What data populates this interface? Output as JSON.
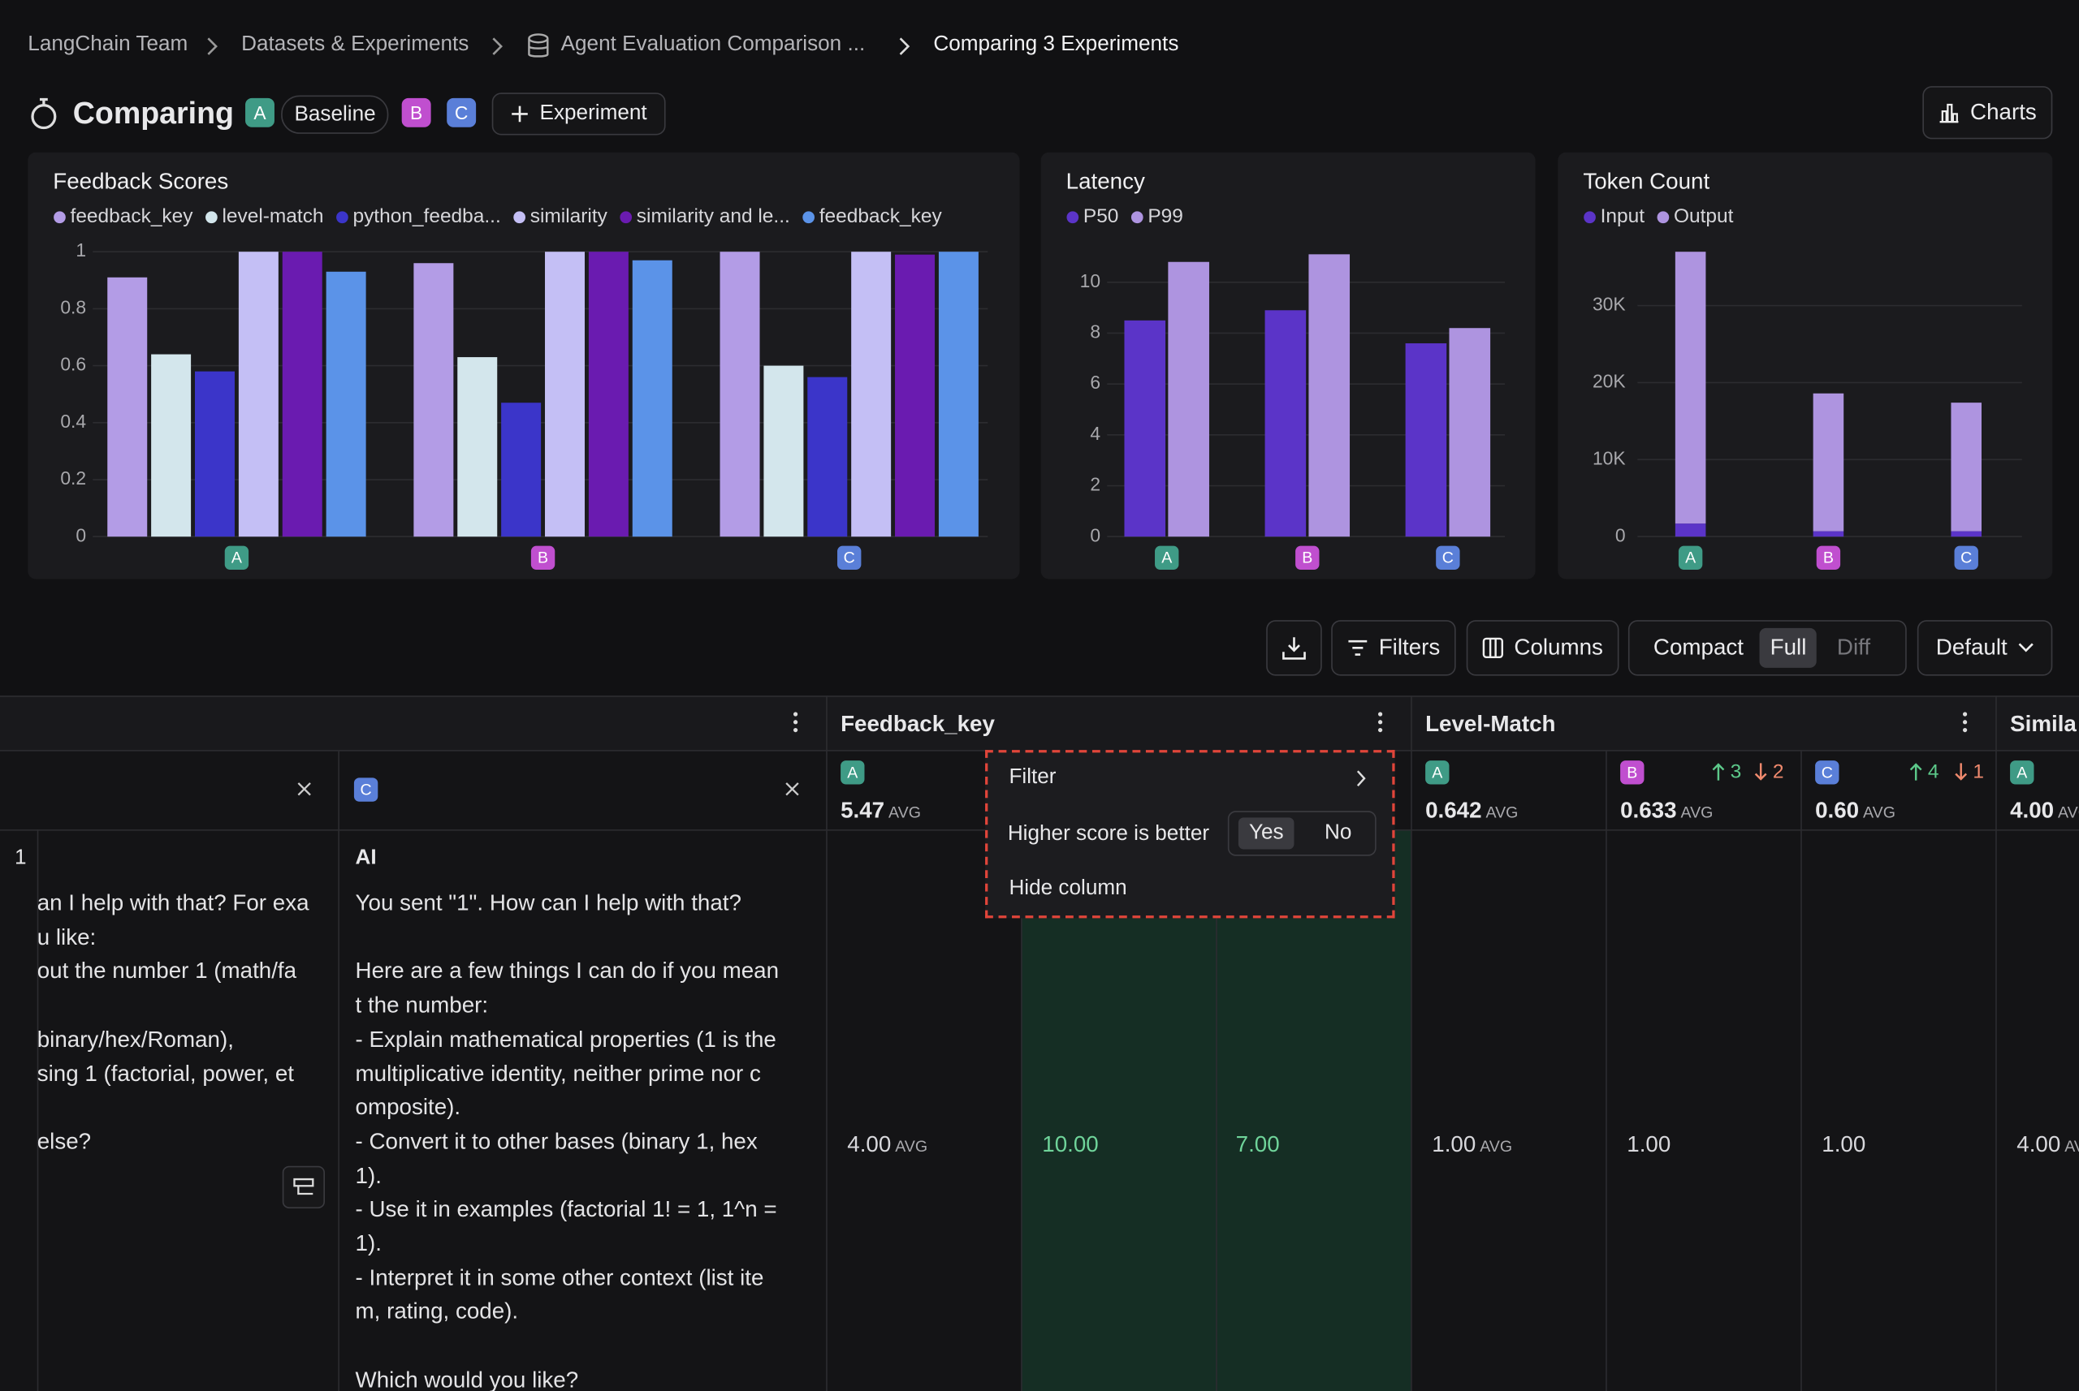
{
  "breadcrumbs": [
    "LangChain Team",
    "Datasets & Experiments",
    "Agent Evaluation Comparison ...",
    "Comparing 3 Experiments"
  ],
  "header": {
    "title": "Comparing",
    "baseline_badge": "A",
    "baseline_label": "Baseline",
    "other_badges": [
      "B",
      "C"
    ],
    "add_button": "Experiment",
    "charts_button": "Charts"
  },
  "badge_colors": {
    "A": "#3f9b86",
    "B": "#c04fcf",
    "C": "#5a7fd8"
  },
  "chart_data": [
    {
      "type": "bar",
      "title": "Feedback Scores",
      "categories": [
        "A",
        "B",
        "C"
      ],
      "ylim": [
        0,
        1
      ],
      "yticks": [
        0,
        0.2,
        0.4,
        0.6,
        0.8,
        1
      ],
      "grid": true,
      "series": [
        {
          "name": "feedback_key",
          "color": "#b39ce6",
          "values": [
            0.91,
            0.96,
            1.0
          ]
        },
        {
          "name": "level-match",
          "color": "#d3e6ec",
          "values": [
            0.64,
            0.63,
            0.6
          ]
        },
        {
          "name": "python_feedba...",
          "color": "#3b35c9",
          "values": [
            0.58,
            0.47,
            0.56
          ]
        },
        {
          "name": "similarity",
          "color": "#c4bff5",
          "values": [
            1.0,
            1.0,
            1.0
          ]
        },
        {
          "name": "similarity and le...",
          "color": "#6a1bb0",
          "values": [
            1.0,
            1.0,
            0.99
          ]
        },
        {
          "name": "feedback_key",
          "color": "#5b93e8",
          "values": [
            0.93,
            0.97,
            1.0
          ]
        }
      ]
    },
    {
      "type": "bar",
      "title": "Latency",
      "categories": [
        "A",
        "B",
        "C"
      ],
      "ylim": [
        0,
        11.2
      ],
      "yticks": [
        0,
        2,
        4,
        6,
        8,
        10
      ],
      "grid": true,
      "series": [
        {
          "name": "P50",
          "color": "#5b34c8",
          "values": [
            8.5,
            8.9,
            7.6
          ]
        },
        {
          "name": "P99",
          "color": "#ae94e0",
          "values": [
            10.8,
            11.1,
            8.2
          ]
        }
      ]
    },
    {
      "type": "bar",
      "stacked": true,
      "title": "Token Count",
      "categories": [
        "A",
        "B",
        "C"
      ],
      "ylim": [
        0,
        37000
      ],
      "yticks": [
        0,
        {
          "value": 10000,
          "label": "10K"
        },
        {
          "value": 20000,
          "label": "20K"
        },
        {
          "value": 30000,
          "label": "30K"
        }
      ],
      "grid": true,
      "series": [
        {
          "name": "Input",
          "color": "#5b34c8",
          "values": [
            1700,
            700,
            700
          ]
        },
        {
          "name": "Output",
          "color": "#ae94e0",
          "values": [
            35300,
            17900,
            16700
          ]
        }
      ]
    }
  ],
  "toolbar": {
    "filters": "Filters",
    "columns": "Columns",
    "views": [
      "Compact",
      "Full",
      "Diff"
    ],
    "sort": "Default"
  },
  "table": {
    "avg_label": "AVG",
    "row_number": "1",
    "left_column": {
      "paragraphs": [
        [
          "an I help with that? For exa",
          "u like:",
          "out the number 1 (math/fa"
        ],
        [
          "binary/hex/Roman),",
          "sing 1 (factorial, power, et"
        ],
        [
          "else?"
        ]
      ]
    },
    "output_column": {
      "badge": "C",
      "role": "AI",
      "paragraphs": [
        [
          "You sent \"1\". How can I help with that?"
        ],
        [
          "Here are a few things I can do if you mean",
          "t the number:",
          "- Explain mathematical properties (1 is the",
          "multiplicative identity, neither prime nor c",
          "omposite).",
          "- Convert it to other bases (binary 1, hex",
          "1).",
          "- Use it in examples (factorial 1! = 1, 1^n =",
          "1).",
          "- Interpret it in some other context (list ite",
          "m, rating, code)."
        ],
        [
          "Which would you like?"
        ]
      ]
    },
    "feedback_columns": [
      {
        "name": "Feedback_key",
        "experiments": [
          {
            "badge": "A",
            "avg": "5.47"
          }
        ],
        "row": [
          "4.00",
          "10.00",
          "7.00"
        ]
      },
      {
        "name": "Level-Match",
        "experiments": [
          {
            "badge": "A",
            "avg": "0.642"
          },
          {
            "badge": "B",
            "avg": "0.633",
            "up": "3",
            "down": "2"
          },
          {
            "badge": "C",
            "avg": "0.60",
            "up": "4",
            "down": "1"
          }
        ],
        "row": [
          "1.00",
          "1.00",
          "1.00"
        ]
      },
      {
        "name": "Simila",
        "experiments": [
          {
            "badge": "A",
            "avg": "4.00"
          }
        ],
        "row": [
          "4.00"
        ]
      }
    ]
  },
  "column_menu": {
    "filter": "Filter",
    "higher_label": "Higher score is better",
    "yes": "Yes",
    "no": "No",
    "hide": "Hide column"
  }
}
